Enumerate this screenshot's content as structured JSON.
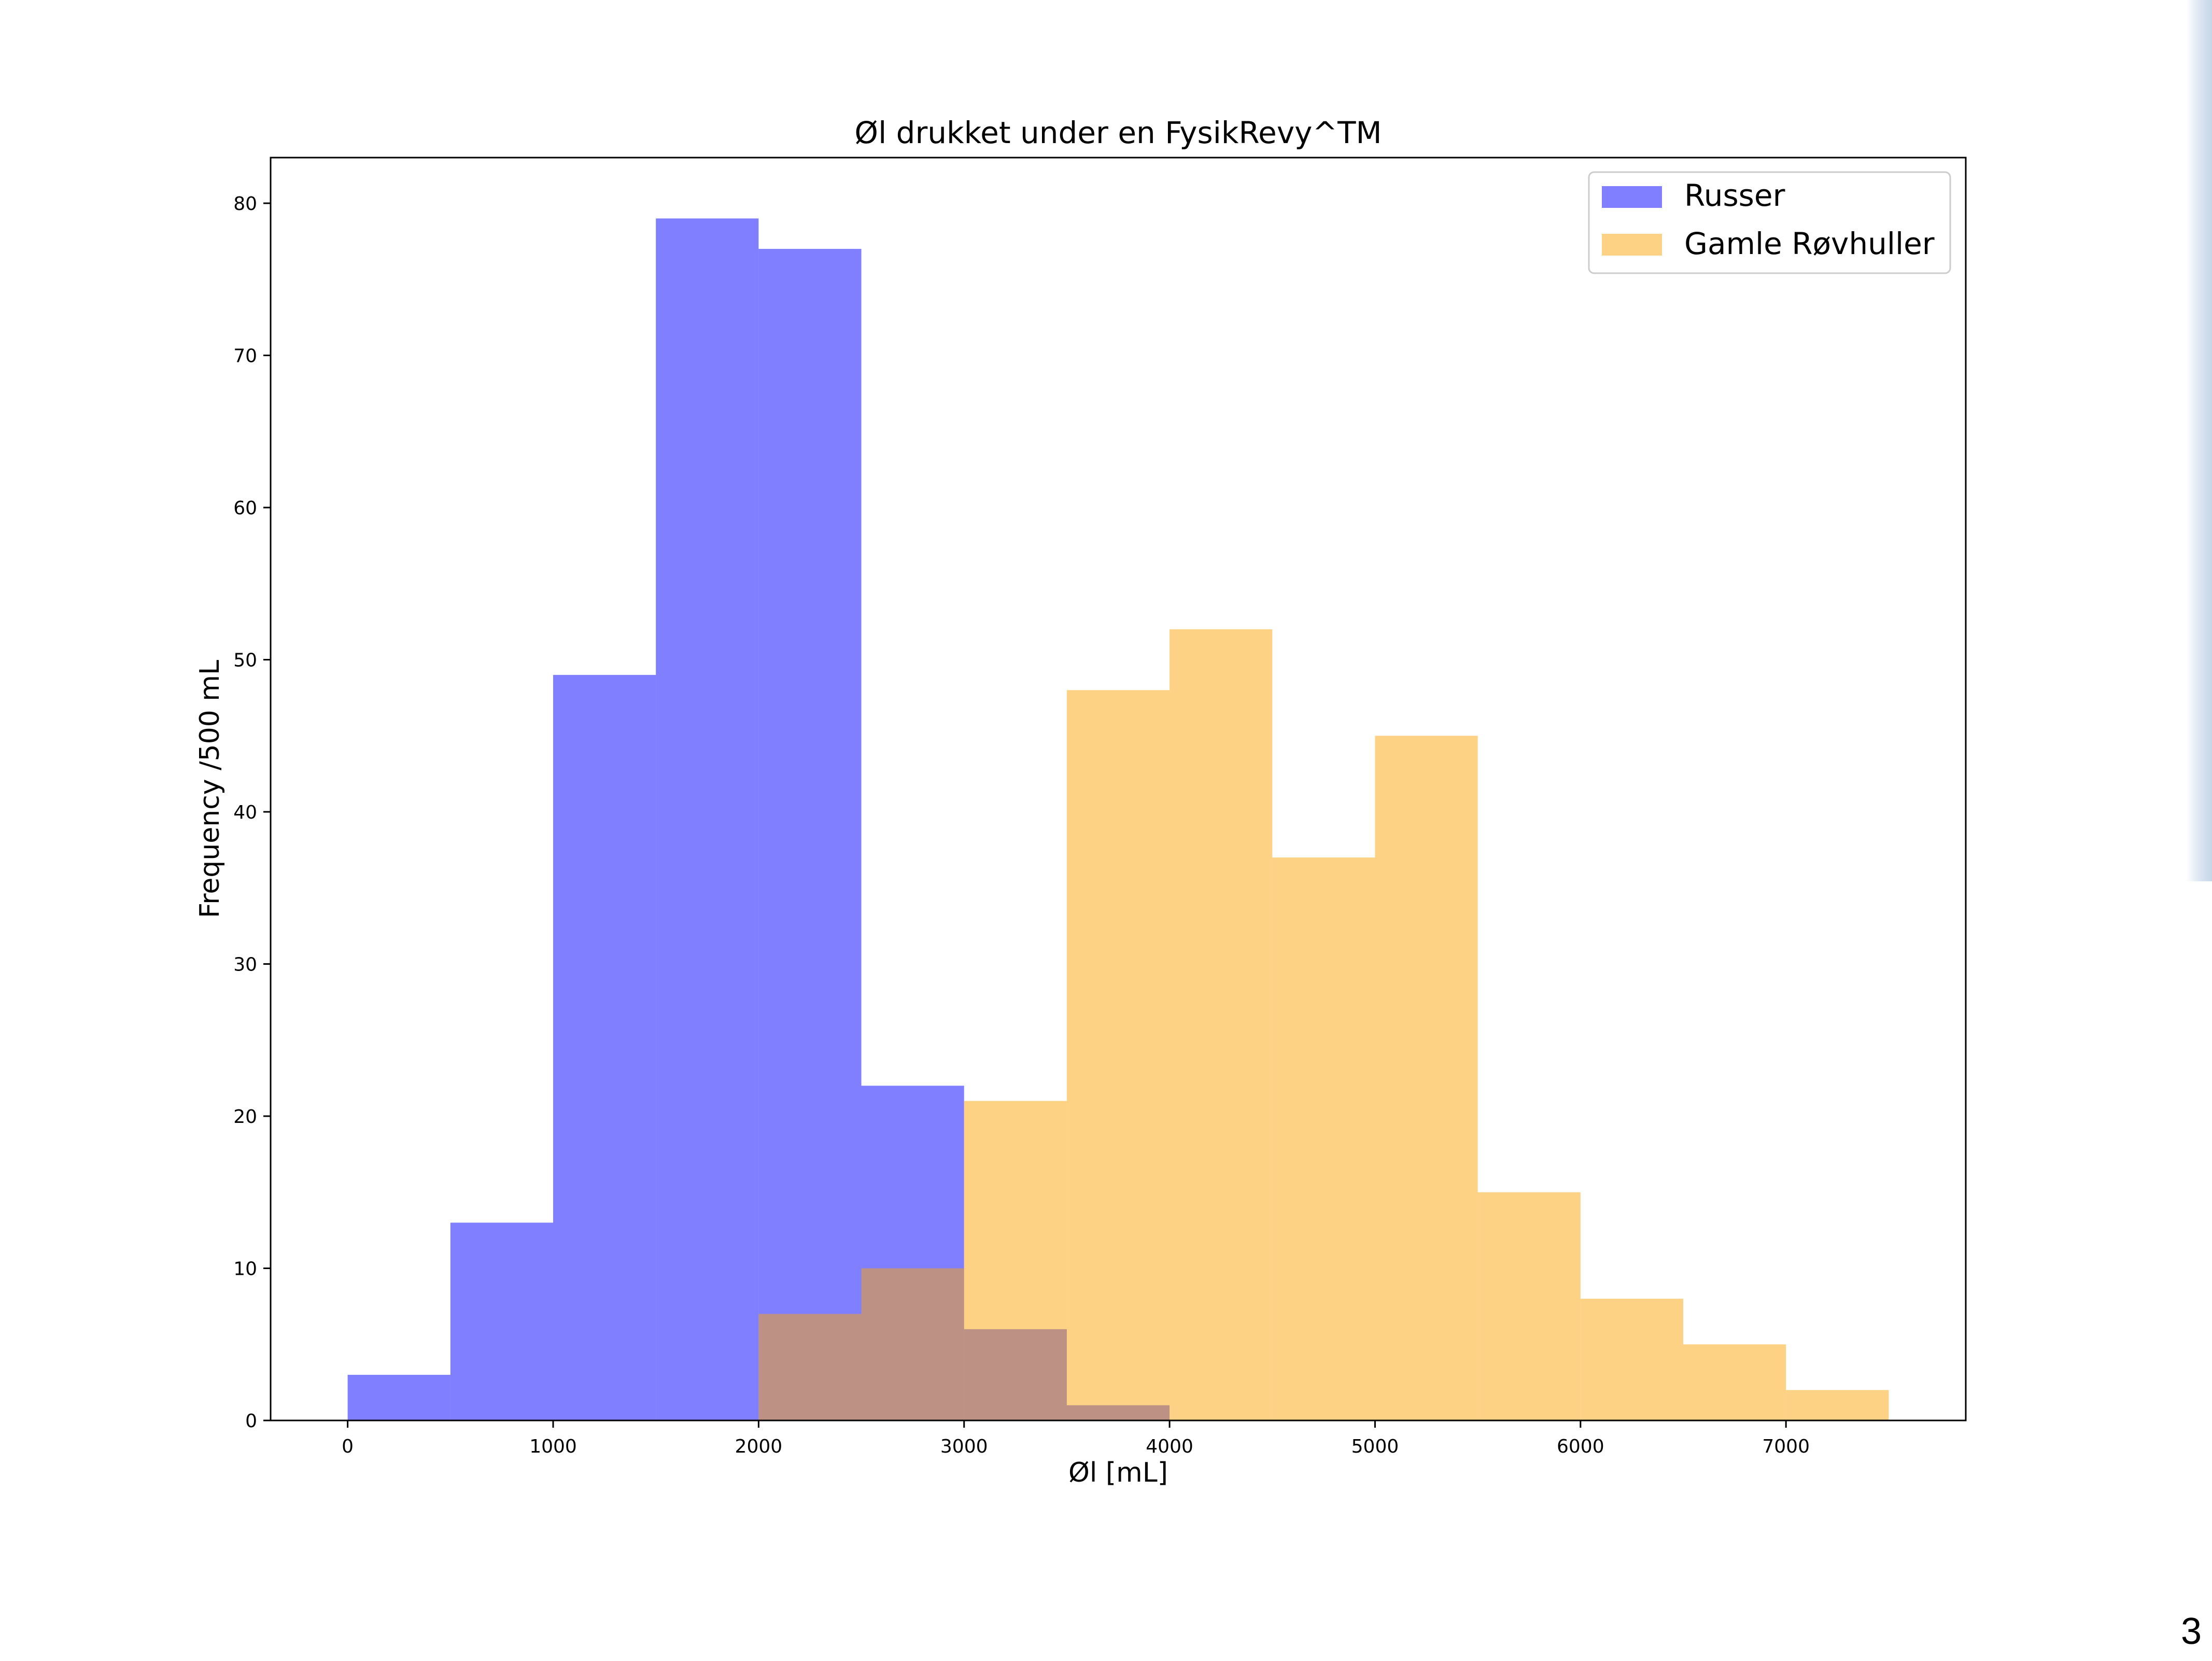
{
  "slide": {
    "page_number": "3"
  },
  "chart_data": {
    "type": "bar",
    "subtype": "histogram",
    "title": "Øl drukket under en FysikRevy^TM",
    "xlabel": "Øl [mL]",
    "ylabel": "Frequency /500 mL",
    "xlim": [
      -375,
      7875
    ],
    "ylim": [
      0,
      83
    ],
    "xticks": [
      "0",
      "1000",
      "2000",
      "3000",
      "4000",
      "5000",
      "6000",
      "7000"
    ],
    "yticks": [
      "0",
      "10",
      "20",
      "30",
      "40",
      "50",
      "60",
      "70",
      "80"
    ],
    "grid": false,
    "legend_position": "top-right",
    "series": [
      {
        "name": "Russer",
        "color": "#0000ff",
        "alpha": 0.5,
        "bins": [
          0,
          500,
          1000,
          1500,
          2000,
          2500,
          3000,
          3500,
          4000
        ],
        "values": [
          3,
          13,
          49,
          79,
          77,
          22,
          6,
          1
        ]
      },
      {
        "name": "Gamle Røvhuller",
        "color": "#fca50a",
        "alpha": 0.5,
        "bins": [
          2000,
          2500,
          3000,
          3500,
          4000,
          4500,
          5000,
          5500,
          6000,
          6500,
          7000,
          7500
        ],
        "values": [
          7,
          10,
          21,
          48,
          52,
          37,
          45,
          15,
          8,
          5,
          2
        ]
      }
    ]
  }
}
